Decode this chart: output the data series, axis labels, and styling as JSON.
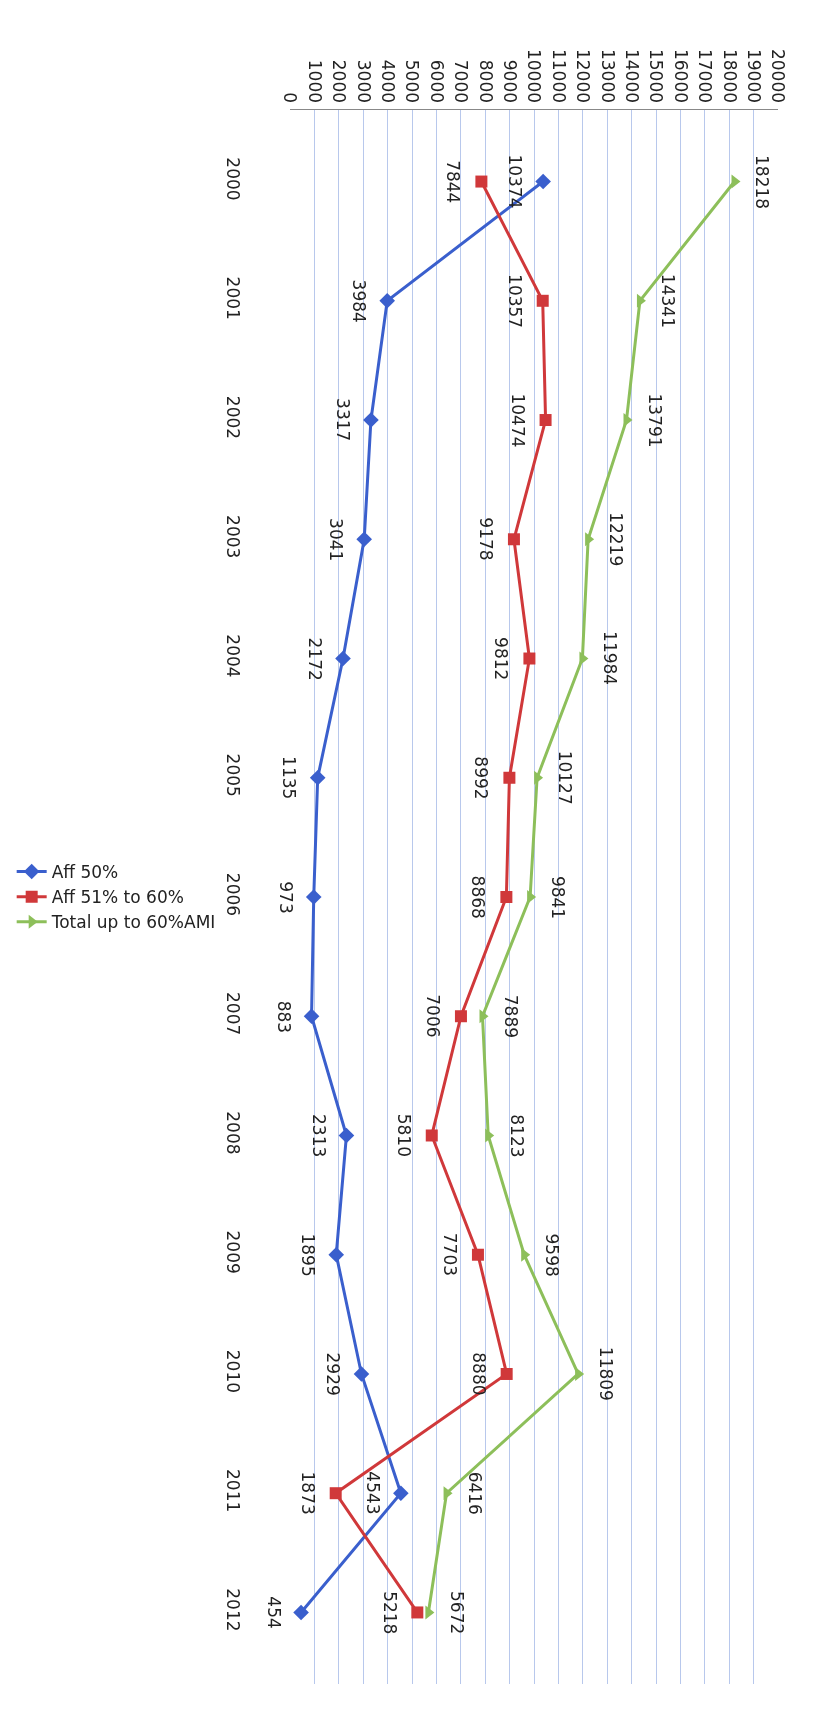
{
  "chart_data": {
    "type": "line",
    "categories": [
      "2000",
      "2001",
      "2002",
      "2003",
      "2004",
      "2005",
      "2006",
      "2007",
      "2008",
      "2009",
      "2010",
      "2011",
      "2012"
    ],
    "series": [
      {
        "name": "Aff 50%",
        "color": "#3a5fcd",
        "marker": "diamond",
        "values": [
          10374,
          3984,
          3317,
          3041,
          2172,
          1135,
          973,
          883,
          2313,
          1895,
          2929,
          4543,
          454
        ]
      },
      {
        "name": "Aff 51% to 60%",
        "color": "#d0383a",
        "marker": "square",
        "values": [
          7844,
          10357,
          10474,
          9178,
          9812,
          8992,
          8868,
          7006,
          5810,
          7703,
          8880,
          1873,
          5218
        ]
      },
      {
        "name": "Total up to 60%AMI",
        "color": "#8dbf5a",
        "marker": "triangle",
        "values": [
          18218,
          14341,
          13791,
          12219,
          11984,
          10127,
          9841,
          7889,
          8123,
          9598,
          11809,
          6416,
          5672
        ]
      }
    ],
    "orientation": "horizontal",
    "xlim": [
      0,
      20000
    ],
    "xticks": [
      0,
      1000,
      2000,
      3000,
      4000,
      5000,
      6000,
      7000,
      8000,
      9000,
      10000,
      11000,
      12000,
      13000,
      14000,
      15000,
      16000,
      17000,
      18000,
      19000,
      20000
    ],
    "grid": "x",
    "legend": "left",
    "data_labels": true,
    "line_style": "solid"
  }
}
